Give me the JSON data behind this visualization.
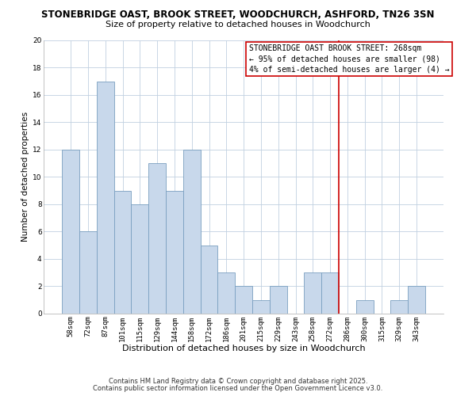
{
  "title": "STONEBRIDGE OAST, BROOK STREET, WOODCHURCH, ASHFORD, TN26 3SN",
  "subtitle": "Size of property relative to detached houses in Woodchurch",
  "xlabel": "Distribution of detached houses by size in Woodchurch",
  "ylabel": "Number of detached properties",
  "bar_labels": [
    "58sqm",
    "72sqm",
    "87sqm",
    "101sqm",
    "115sqm",
    "129sqm",
    "144sqm",
    "158sqm",
    "172sqm",
    "186sqm",
    "201sqm",
    "215sqm",
    "229sqm",
    "243sqm",
    "258sqm",
    "272sqm",
    "286sqm",
    "300sqm",
    "315sqm",
    "329sqm",
    "343sqm"
  ],
  "bar_values": [
    12,
    6,
    17,
    9,
    8,
    11,
    9,
    12,
    5,
    3,
    2,
    1,
    2,
    0,
    3,
    3,
    0,
    1,
    0,
    1,
    2
  ],
  "bar_color": "#c8d8eb",
  "bar_edge_color": "#7a9fc0",
  "ylim": [
    0,
    20
  ],
  "yticks": [
    0,
    2,
    4,
    6,
    8,
    10,
    12,
    14,
    16,
    18,
    20
  ],
  "vline_x": 15.5,
  "vline_color": "#cc0000",
  "annotation_title": "STONEBRIDGE OAST BROOK STREET: 268sqm",
  "annotation_line1": "← 95% of detached houses are smaller (98)",
  "annotation_line2": "4% of semi-detached houses are larger (4) →",
  "footer1": "Contains HM Land Registry data © Crown copyright and database right 2025.",
  "footer2": "Contains public sector information licensed under the Open Government Licence v3.0.",
  "background_color": "#ffffff",
  "grid_color": "#c0d0e0",
  "title_fontsize": 8.5,
  "subtitle_fontsize": 8.0,
  "xlabel_fontsize": 8.0,
  "ylabel_fontsize": 7.5,
  "tick_fontsize": 6.5,
  "footer_fontsize": 6.0,
  "annotation_fontsize": 7.0
}
